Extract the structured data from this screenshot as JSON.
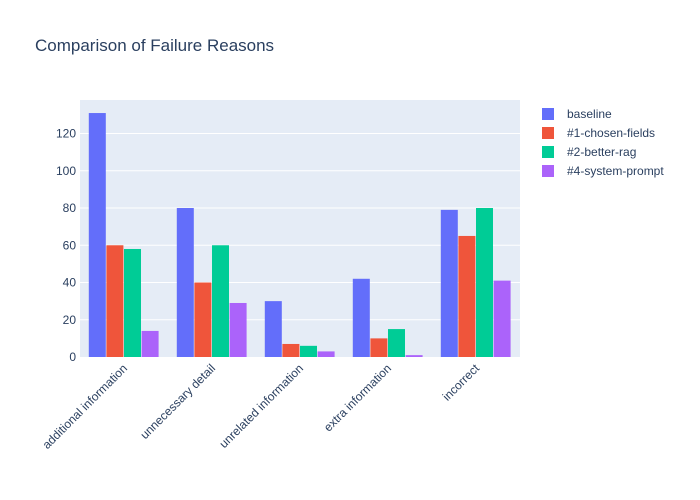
{
  "chart_data": {
    "type": "bar",
    "title": "Comparison of Failure Reasons",
    "xlabel": "",
    "ylabel": "",
    "categories": [
      "additional information",
      "unnecessary detail",
      "unrelated information",
      "extra information",
      "incorrect"
    ],
    "series": [
      {
        "name": "baseline",
        "color": "#636efa",
        "values": [
          131,
          80,
          30,
          42,
          79
        ]
      },
      {
        "name": "#1-chosen-fields",
        "color": "#ef553b",
        "values": [
          60,
          40,
          7,
          10,
          65
        ]
      },
      {
        "name": "#2-better-rag",
        "color": "#00cc96",
        "values": [
          58,
          60,
          6,
          15,
          80
        ]
      },
      {
        "name": "#4-system-prompt",
        "color": "#ab63fa",
        "values": [
          14,
          29,
          3,
          1,
          41
        ]
      }
    ],
    "yticks": [
      0,
      20,
      40,
      60,
      80,
      100,
      120
    ],
    "ylim": [
      0,
      138
    ],
    "grid": true,
    "legend": "top-right",
    "plot_background": "#e5ecf6",
    "grid_color": "#ffffff",
    "text_color": "#2a3f5f"
  }
}
